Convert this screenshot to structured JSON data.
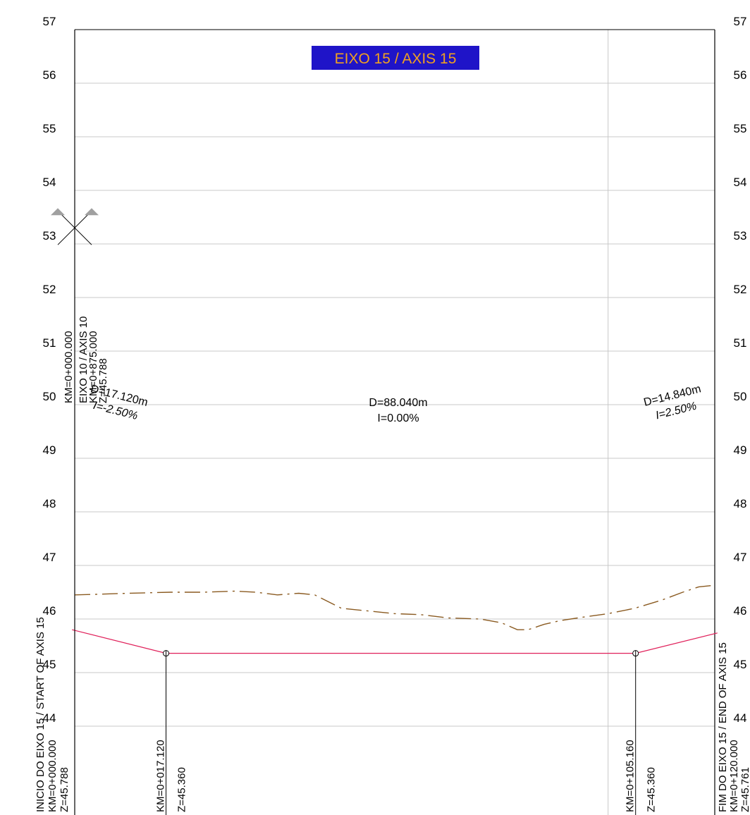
{
  "title": {
    "text": "EIXO 15 / AXIS 15",
    "bg_color": "#1f14c8",
    "text_color": "#f0a020"
  },
  "levels": [
    "57",
    "56",
    "55",
    "54",
    "53",
    "52",
    "51",
    "50",
    "49",
    "48",
    "47",
    "46",
    "45",
    "44"
  ],
  "chart_data": {
    "type": "line",
    "title": "EIXO 15 / AXIS 15",
    "xlabel": "",
    "ylabel": "",
    "xlim": [
      0,
      120
    ],
    "ylim": [
      43.2,
      57
    ],
    "grid": true,
    "terrain": [
      [
        0,
        46.45
      ],
      [
        4,
        46.46
      ],
      [
        10,
        46.48
      ],
      [
        18,
        46.5
      ],
      [
        24,
        46.5
      ],
      [
        30,
        46.52
      ],
      [
        34,
        46.5
      ],
      [
        38,
        46.45
      ],
      [
        42,
        46.48
      ],
      [
        45,
        46.45
      ],
      [
        50,
        46.2
      ],
      [
        55,
        46.15
      ],
      [
        60,
        46.1
      ],
      [
        65,
        46.08
      ],
      [
        70,
        46.02
      ],
      [
        76,
        46.0
      ],
      [
        80,
        45.93
      ],
      [
        83,
        45.8
      ],
      [
        85,
        45.8
      ],
      [
        88,
        45.9
      ],
      [
        91,
        45.97
      ],
      [
        95,
        46.03
      ],
      [
        100,
        46.1
      ],
      [
        105,
        46.2
      ],
      [
        110,
        46.35
      ],
      [
        114,
        46.5
      ],
      [
        117,
        46.6
      ],
      [
        120,
        46.63
      ]
    ],
    "grade_line": [
      [
        -0.5,
        45.8
      ],
      [
        17.12,
        45.36
      ],
      [
        105.16,
        45.36
      ],
      [
        120.5,
        45.74
      ]
    ],
    "segments": [
      {
        "distance": "D=17.120m",
        "slope": "I=-2.50%"
      },
      {
        "distance": "D=88.040m",
        "slope": "I=0.00%"
      },
      {
        "distance": "D=14.840m",
        "slope": "I=2.50%"
      }
    ],
    "pvi": [
      {
        "x": 17.12,
        "z": 45.36,
        "km": "KM=0+017.120",
        "z_label": "Z=45.360"
      },
      {
        "x": 105.16,
        "z": 45.36,
        "km": "KM=0+105.160",
        "z_label": "Z=45.360"
      }
    ],
    "start": {
      "lines": [
        "INICIO DO EIXO 15 / START OF AXIS 15",
        "KM=0+000.000",
        "Z=45.788"
      ]
    },
    "end": {
      "lines": [
        "FIM DO EIXO 15 / END OF AXIS 15",
        "KM=0+120.000",
        "Z=45.761"
      ]
    },
    "intersection": {
      "x": 0,
      "z": 53.3,
      "lines": [
        "KM=0+000.000",
        "EIXO 10 / AXIS 10",
        "KM=0+875.000",
        "Z=45.788"
      ]
    },
    "vertical_grid_x": [
      100
    ]
  },
  "colors": {
    "grid": "#c8c8c8",
    "frame": "#000000",
    "grade": "#e0205a",
    "terrain": "#8a5a20",
    "marker": "#a0a0a0"
  }
}
